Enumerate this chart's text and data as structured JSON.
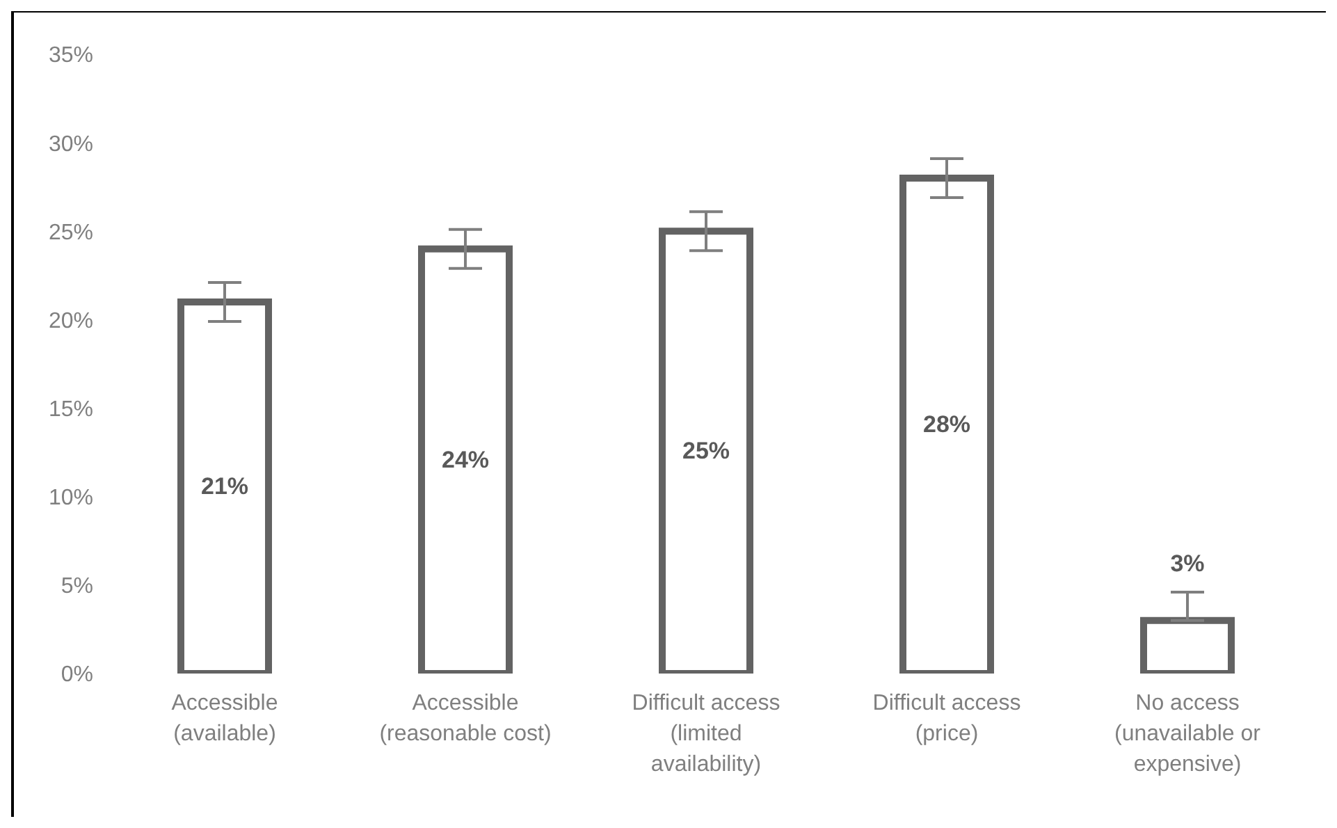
{
  "chart_data": {
    "type": "bar",
    "categories": [
      "Accessible (available)",
      "Accessible (reasonable cost)",
      "Difficult access (limited availability)",
      "Difficult access (price)",
      "No access (unavailable or expensive)"
    ],
    "values": [
      21,
      24,
      25,
      28,
      3
    ],
    "errors": [
      [
        19.9,
        22.1
      ],
      [
        22.9,
        25.1
      ],
      [
        23.9,
        26.1
      ],
      [
        26.9,
        29.1
      ],
      [
        3,
        4.6
      ]
    ],
    "color": "#636363",
    "ylim": [
      0,
      35
    ],
    "yticks": [
      {
        "value": 0,
        "label": "0%"
      },
      {
        "value": 5,
        "label": "5%"
      },
      {
        "value": 10,
        "label": "10%"
      },
      {
        "value": 15,
        "label": "15%"
      },
      {
        "value": 20,
        "label": "20%"
      },
      {
        "value": 25,
        "label": "25%"
      },
      {
        "value": 30,
        "label": "30%"
      },
      {
        "value": 35,
        "label": "35%"
      }
    ],
    "value_labels": [
      "21%",
      "24%",
      "25%",
      "28%",
      "3%"
    ],
    "grid": false,
    "legend": false
  }
}
